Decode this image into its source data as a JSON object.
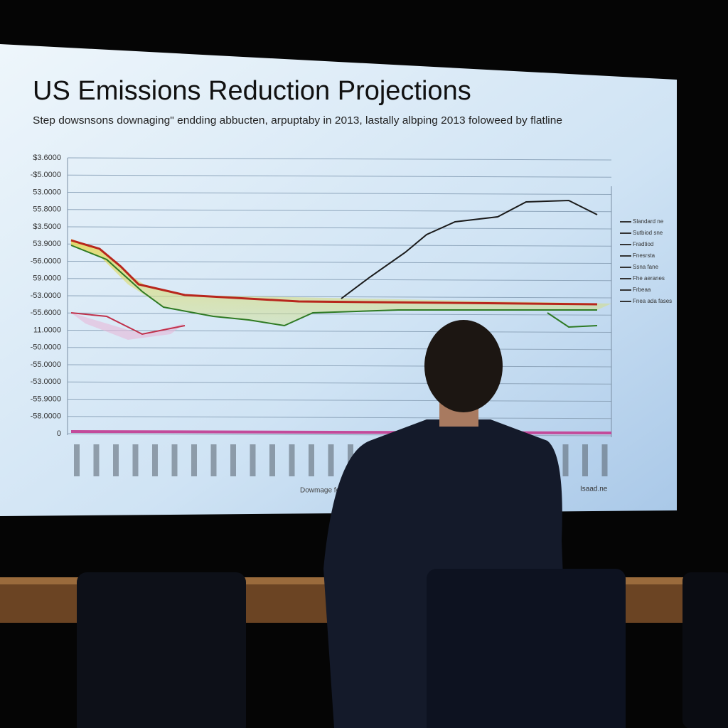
{
  "screen": {
    "title": "US Emissions Reduction Projections",
    "subtitle": "Step dowsnsons downaging\" endding abbucten, arpuptaby in 2013, lastally albping 2013 foloweed by flatline",
    "y_axis_labels": [
      "$3.6000",
      "-$5.0000",
      "53.0000",
      "55.8000",
      "$3.5000",
      "53.9000",
      "-56.0000",
      "59.0000",
      "-53.0000",
      "-55.6000",
      "11.0000",
      "-50.0000",
      "-55.0000",
      "-53.0000",
      "-55.9000",
      "-58.0000",
      "0"
    ],
    "legend": [
      "Slandard ne",
      "Sutbiod sne",
      "Fradtiod",
      "Fnesrsta",
      "Ssna fane",
      "Fhe aeranes",
      "Frbeaa",
      "Fnea ada fases"
    ],
    "x_axis_title": "Dowmage for Fas",
    "x_axis_note": "Isaad.ne"
  }
}
